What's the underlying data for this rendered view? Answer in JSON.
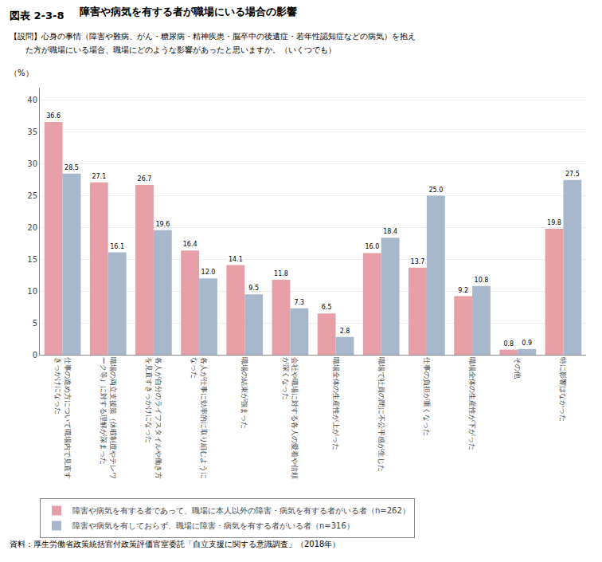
{
  "chart_data": {
    "type": "bar",
    "title": "障害や病気を有する者が職場にいる場合の影響",
    "ylabel": "（%）",
    "annotations": [
      "図表 2-3-8",
      "【設問】心身の事情（障害や難病、がん・糖尿病・精神疾患・脳卒中の後遺症・若年性認知症などの病気）を抱え",
      "　　た方が職場にいる場合、職場にどのような影響があったと思いますか。（いくつでも）",
      "資料：厚生労働省政策統括官付政策評価官室委託「自立支援に関する意識調査」（2018年）"
    ],
    "categories": [
      "仕事の進め方について職場内で見直すきっかけになった",
      "職場の両立支援策（休暇制度やテレワーク等）に対する理解が深まった",
      "各人が自分のライフスタイルや働き方を見直すきっかけになった",
      "各人が仕事に効率的に取り組むようになった",
      "職場の結束が強まった",
      "会社や職場に対する各人の愛着や信頼が深くなった",
      "職場全体の生産性が上がった",
      "職場で社員の間に不公平感が生じた",
      "仕事の負担が重くなった",
      "職場全体の生産性が下がった",
      "その他",
      "特に影響はなかった"
    ],
    "series": [
      {
        "name": "障害や病気を有する者であって、職場に本人以外の障害・病気を有する者がいる者（n=262）",
        "color": "#E8A0A8",
        "values": [
          36.6,
          27.1,
          26.7,
          16.4,
          14.1,
          11.8,
          6.5,
          16.0,
          13.7,
          9.2,
          0.8,
          19.8
        ],
        "value_labels": [
          "36.6",
          "27.1",
          "26.7",
          "16.4",
          "14.1",
          "11.8",
          "6.5",
          "16.0",
          "13.7",
          "9.2",
          "0.8",
          "19.8"
        ]
      },
      {
        "name": "障害や病気を有しておらず、職場に障害・病気を有する者がいる者（n=316）",
        "color": "#A8B8CC",
        "values": [
          28.5,
          16.1,
          19.6,
          12.0,
          9.5,
          7.3,
          2.8,
          18.4,
          25.0,
          10.8,
          0.9,
          27.5
        ],
        "value_labels": [
          "28.5",
          "16.1",
          "19.6",
          "12.0",
          "9.5",
          "7.3",
          "2.8",
          "18.4",
          "25.0",
          "10.8",
          "0.9",
          "27.5"
        ]
      }
    ],
    "ylim": [
      0,
      42
    ],
    "yticks": [
      0,
      5,
      10,
      15,
      20,
      25,
      30,
      35,
      40
    ],
    "grid": true,
    "data_labels": true,
    "legend": "bottom"
  }
}
